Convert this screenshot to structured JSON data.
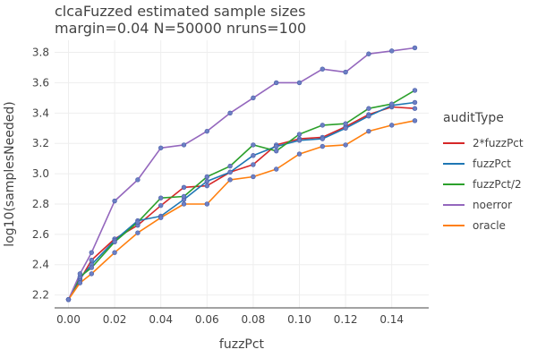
{
  "chart_data": {
    "type": "line",
    "title": "clcaFuzzed estimated sample sizes",
    "subtitle": "margin=0.04 N=50000 nruns=100",
    "xlabel": "fuzzPct",
    "ylabel": "log10(samplesNeeded)",
    "xlim": [
      -0.006,
      0.156
    ],
    "ylim": [
      2.115,
      3.88
    ],
    "x_ticks": [
      "0.00",
      "0.02",
      "0.04",
      "0.06",
      "0.08",
      "0.10",
      "0.12",
      "0.14"
    ],
    "y_ticks": [
      "2.2",
      "2.4",
      "2.6",
      "2.8",
      "3.0",
      "3.2",
      "3.4",
      "3.6",
      "3.8"
    ],
    "grid": true,
    "legend_title": "auditType",
    "legend_position": "right",
    "x": [
      0.0,
      0.005,
      0.01,
      0.02,
      0.03,
      0.04,
      0.05,
      0.06,
      0.07,
      0.08,
      0.09,
      0.1,
      0.11,
      0.12,
      0.13,
      0.14,
      0.15
    ],
    "series": [
      {
        "name": "2*fuzzPct",
        "color": "#d62728",
        "values": [
          2.17,
          2.3,
          2.43,
          2.57,
          2.66,
          2.79,
          2.91,
          2.92,
          3.01,
          3.06,
          3.19,
          3.23,
          3.24,
          3.31,
          3.39,
          3.44,
          3.43
        ]
      },
      {
        "name": "fuzzPct",
        "color": "#1f77b4",
        "values": [
          2.17,
          2.31,
          2.4,
          2.56,
          2.69,
          2.72,
          2.83,
          2.95,
          3.01,
          3.12,
          3.18,
          3.22,
          3.23,
          3.3,
          3.38,
          3.45,
          3.47
        ]
      },
      {
        "name": "fuzzPct/2",
        "color": "#2ca02c",
        "values": [
          2.17,
          2.32,
          2.38,
          2.55,
          2.68,
          2.84,
          2.85,
          2.98,
          3.05,
          3.19,
          3.15,
          3.26,
          3.32,
          3.33,
          3.43,
          3.46,
          3.55
        ]
      },
      {
        "name": "noerror",
        "color": "#9467bd",
        "values": [
          2.17,
          2.34,
          2.48,
          2.82,
          2.96,
          3.17,
          3.19,
          3.28,
          3.4,
          3.5,
          3.6,
          3.6,
          3.69,
          3.67,
          3.79,
          3.81,
          3.83
        ]
      },
      {
        "name": "oracle",
        "color": "#ff7f0e",
        "values": [
          2.17,
          2.28,
          2.34,
          2.48,
          2.61,
          2.71,
          2.8,
          2.8,
          2.96,
          2.98,
          3.03,
          3.13,
          3.18,
          3.19,
          3.28,
          3.32,
          3.35
        ]
      }
    ],
    "marker_color": "#6c7fc4"
  }
}
